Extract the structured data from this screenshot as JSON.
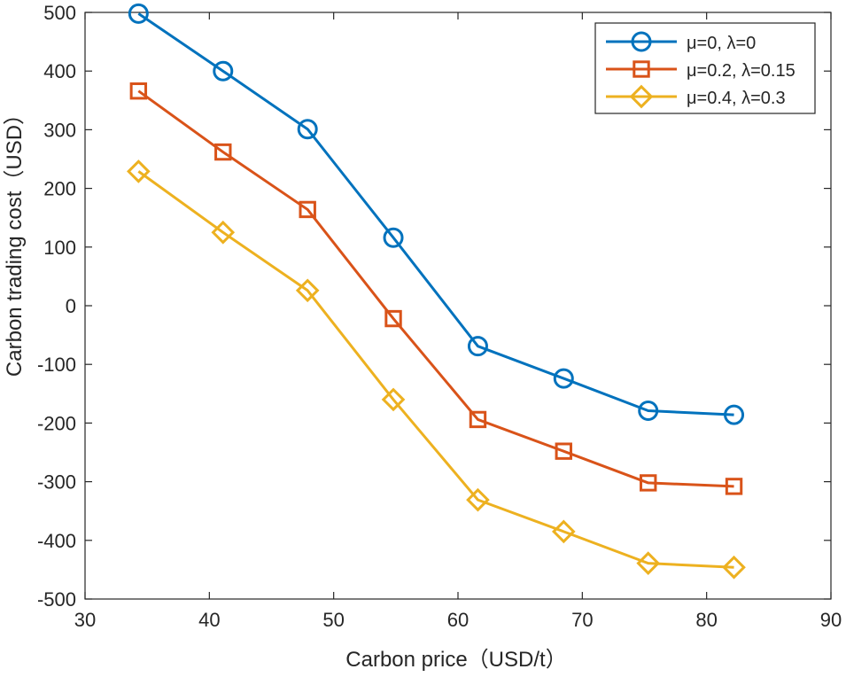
{
  "chart_data": {
    "type": "line",
    "title": "",
    "xlabel": "Carbon price（USD/t）",
    "ylabel": "Carbon trading cost（USD）",
    "xlim": [
      30,
      90
    ],
    "ylim": [
      -500,
      500
    ],
    "xticks": [
      30,
      40,
      50,
      60,
      70,
      80,
      90
    ],
    "yticks": [
      500,
      400,
      300,
      200,
      100,
      0,
      -100,
      -200,
      -300,
      -400,
      -500
    ],
    "grid": false,
    "legend_position": "top-right",
    "x": [
      34.3,
      41.1,
      47.9,
      54.8,
      61.6,
      68.5,
      75.3,
      82.2
    ],
    "series": [
      {
        "name": "μ=0, λ=0",
        "color": "#0072BD",
        "marker": "circle",
        "values": [
          498,
          400,
          301,
          116,
          -69,
          -124,
          -179,
          -186
        ]
      },
      {
        "name": "μ=0.2, λ=0.15",
        "color": "#D95319",
        "marker": "square",
        "values": [
          366,
          262,
          164,
          -22,
          -194,
          -248,
          -302,
          -308
        ]
      },
      {
        "name": "μ=0.4, λ=0.3",
        "color": "#EDB120",
        "marker": "diamond",
        "values": [
          229,
          125,
          26,
          -160,
          -331,
          -385,
          -439,
          -446
        ]
      }
    ]
  }
}
